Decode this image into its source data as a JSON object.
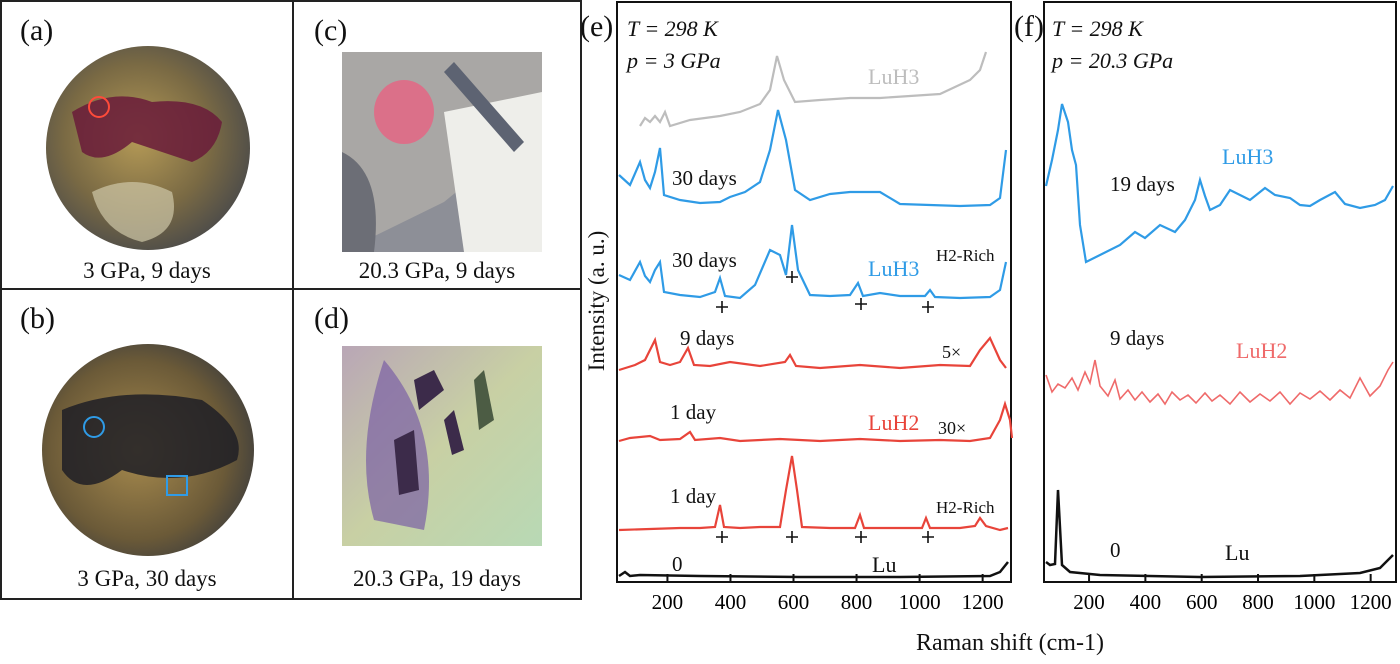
{
  "photos": [
    {
      "label": "(a)",
      "caption": "3 GPa, 9 days"
    },
    {
      "label": "(b)",
      "caption": "3 GPa, 30 days"
    },
    {
      "label": "(c)",
      "caption": "20.3 GPa, 9 days"
    },
    {
      "label": "(d)",
      "caption": "20.3 GPa, 19 days"
    }
  ],
  "panel_e": {
    "label": "(e)",
    "condition_T": "T = 298 K",
    "condition_p": "p = 3 GPa",
    "annotations": {
      "lu": "Lu",
      "zero": "0",
      "one_day_a": "1 day",
      "one_day_b": "1 day",
      "nine_days": "9 days",
      "thirty_a": "30 days",
      "thirty_b": "30 days",
      "h2rich_a": "H2-Rich",
      "h2rich_b": "H2-Rich",
      "luh2": "LuH2",
      "luh3_blue": "LuH3",
      "luh3_gray": "LuH3",
      "mult30": "30×",
      "mult5": "5×"
    }
  },
  "panel_f": {
    "label": "(f)",
    "condition_T": "T = 298 K",
    "condition_p": "p = 20.3 GPa",
    "annotations": {
      "zero": "0",
      "lu": "Lu",
      "nine_days": "9 days",
      "luh2": "LuH2",
      "nineteen_days": "19 days",
      "luh3": "LuH3"
    }
  },
  "y_axis_label": "Intensity (a. u.)",
  "x_axis_label": "Raman shift (cm-1)",
  "colors": {
    "gray": "#bdbdbd",
    "blue": "#2f9be6",
    "red": "#e8443a",
    "pink": "#ef6a6a",
    "black": "#111111"
  },
  "chart_data": [
    {
      "type": "line",
      "panel": "e",
      "x_ticks": [
        200,
        400,
        600,
        800,
        1000,
        1200
      ],
      "xlim": [
        40,
        1290
      ],
      "units": "cm-1",
      "series": [
        {
          "name": "0",
          "color": "black",
          "peaks": [
            [
              70,
              0.5
            ]
          ]
        },
        {
          "name": "1 day H2-Rich",
          "color": "red",
          "peaks": [
            [
              357,
              0.45
            ],
            [
              590,
              1
            ],
            [
              808,
              0.2
            ],
            [
              1025,
              0.15
            ],
            [
              1200,
              0.15
            ]
          ]
        },
        {
          "name": "1 day 30×",
          "color": "red",
          "peaks": [
            [
              140,
              0.1
            ],
            [
              260,
              0.15
            ],
            [
              1205,
              0.45
            ]
          ]
        },
        {
          "name": "9 days 5×",
          "color": "red",
          "peaks": [
            [
              150,
              0.45
            ],
            [
              260,
              0.3
            ],
            [
              590,
              0.15
            ],
            [
              1195,
              0.4
            ]
          ]
        },
        {
          "name": "30 days H2-Rich",
          "color": "blue",
          "peaks": [
            [
              110,
              0.4
            ],
            [
              160,
              0.35
            ],
            [
              357,
              0.3
            ],
            [
              540,
              0.7
            ],
            [
              590,
              0.85
            ],
            [
              808,
              0.2
            ],
            [
              1025,
              0.15
            ]
          ]
        },
        {
          "name": "30 days",
          "color": "blue",
          "peaks": [
            [
              110,
              0.5
            ],
            [
              160,
              0.5
            ],
            [
              370,
              0.25
            ],
            [
              550,
              1
            ],
            [
              720,
              0.1
            ],
            [
              860,
              0.1
            ]
          ]
        },
        {
          "name": "LuH3",
          "color": "gray",
          "peaks": [
            [
              110,
              0.3
            ],
            [
              160,
              0.25
            ],
            [
              540,
              0.6
            ],
            [
              860,
              0.1
            ]
          ]
        }
      ]
    },
    {
      "type": "line",
      "panel": "f",
      "x_ticks": [
        200,
        400,
        600,
        800,
        1000,
        1200
      ],
      "xlim": [
        40,
        1290
      ],
      "units": "cm-1",
      "series": [
        {
          "name": "0",
          "color": "black",
          "peaks": [
            [
              75,
              0.9
            ]
          ]
        },
        {
          "name": "9 days",
          "color": "pink",
          "peaks": [
            [
              180,
              0.6
            ],
            [
              310,
              0.3
            ],
            [
              140,
              0.2
            ]
          ]
        },
        {
          "name": "19 days",
          "color": "blue",
          "peaks": [
            [
              100,
              0.9
            ],
            [
              150,
              0.6
            ],
            [
              380,
              0.2
            ],
            [
              590,
              0.5
            ],
            [
              710,
              0.3
            ],
            [
              850,
              0.3
            ],
            [
              1100,
              0.2
            ]
          ]
        }
      ]
    }
  ]
}
